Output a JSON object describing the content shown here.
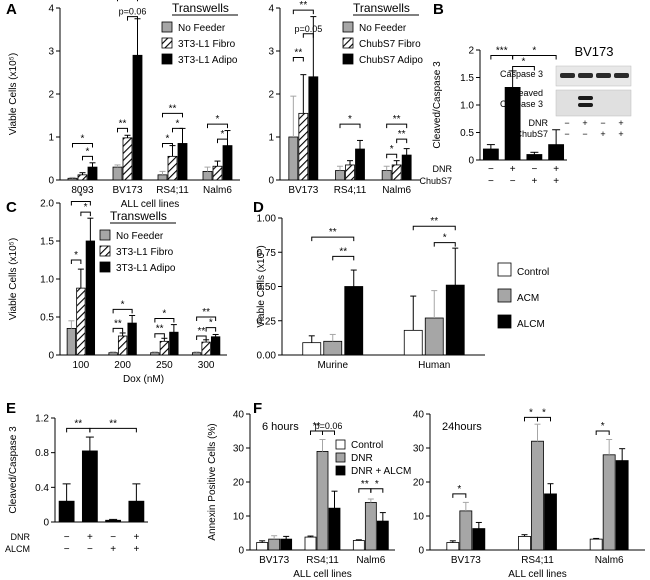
{
  "figure": {
    "colors": {
      "gray": "#a6a6a6",
      "black": "#000000",
      "white": "#ffffff",
      "hatch": "#000000"
    }
  },
  "chart_data": [
    {
      "id": "A1",
      "panel_letter": "A",
      "type": "bar",
      "title": "",
      "ylabel": "Viable Cells (x10⁵)",
      "xlabel": "ALL cell lines",
      "ylim": [
        0,
        4
      ],
      "yticks": [
        "0",
        "1",
        "2",
        "3",
        "4"
      ],
      "legend_title": "Transwells",
      "categories": [
        "8093",
        "BV173",
        "RS4;11",
        "Nalm6"
      ],
      "series": [
        {
          "name": "No Feeder",
          "style": "gray",
          "values": [
            0.04,
            0.3,
            0.12,
            0.2
          ],
          "errors": [
            0.02,
            0.05,
            0.08,
            0.1
          ]
        },
        {
          "name": "3T3-L1 Fibro",
          "style": "hatch",
          "values": [
            0.12,
            0.98,
            0.55,
            0.32
          ],
          "errors": [
            0.05,
            0.06,
            0.25,
            0.12
          ]
        },
        {
          "name": "3T3-L1 Adipo",
          "style": "black",
          "values": [
            0.3,
            2.9,
            0.85,
            0.8
          ],
          "errors": [
            0.1,
            0.85,
            0.35,
            0.35
          ]
        }
      ],
      "annotations": [
        {
          "cat": 0,
          "from": 0,
          "to": 2,
          "label": "*",
          "level": 0.85
        },
        {
          "cat": 0,
          "from": 1,
          "to": 2,
          "label": "*",
          "level": 0.55
        },
        {
          "cat": 1,
          "from": 0,
          "to": 1,
          "label": "**",
          "level": 1.2
        },
        {
          "cat": 1,
          "from": 1,
          "to": 2,
          "label": "p=0.06",
          "level": 3.8
        },
        {
          "cat": 1,
          "from": 0,
          "to": 2,
          "label": "**",
          "level": 4.25
        },
        {
          "cat": 2,
          "from": 0,
          "to": 2,
          "label": "**",
          "level": 1.55
        },
        {
          "cat": 2,
          "from": 0,
          "to": 1,
          "label": "*",
          "level": 0.85
        },
        {
          "cat": 2,
          "from": 1,
          "to": 2,
          "label": "*",
          "level": 1.2
        },
        {
          "cat": 3,
          "from": 0,
          "to": 2,
          "label": "*",
          "level": 1.3
        },
        {
          "cat": 3,
          "from": 1,
          "to": 2,
          "label": "*",
          "level": 0.95
        }
      ]
    },
    {
      "id": "A2",
      "panel_letter": "",
      "type": "bar",
      "title": "",
      "ylabel": "",
      "xlabel": "",
      "ylim": [
        0,
        4
      ],
      "yticks": [
        "0",
        "1",
        "2",
        "3",
        "4"
      ],
      "legend_title": "Transwells",
      "categories": [
        "BV173",
        "RS4;11",
        "Nalm6"
      ],
      "series": [
        {
          "name": "No Feeder",
          "style": "gray",
          "values": [
            1.0,
            0.22,
            0.22
          ],
          "errors": [
            0.95,
            0.1,
            0.1
          ]
        },
        {
          "name": "ChubS7 Fibro",
          "style": "hatch",
          "values": [
            1.55,
            0.35,
            0.35
          ],
          "errors": [
            0.9,
            0.1,
            0.1
          ]
        },
        {
          "name": "ChubS7 Adipo",
          "style": "black",
          "values": [
            2.4,
            0.72,
            0.58
          ],
          "errors": [
            1.4,
            0.2,
            0.15
          ]
        }
      ],
      "annotations": [
        {
          "cat": 0,
          "from": 0,
          "to": 1,
          "label": "**",
          "level": 2.85
        },
        {
          "cat": 0,
          "from": 1,
          "to": 2,
          "label": "p=0.05",
          "level": 3.4
        },
        {
          "cat": 0,
          "from": 0,
          "to": 2,
          "label": "**",
          "level": 3.95
        },
        {
          "cat": 1,
          "from": 0,
          "to": 2,
          "label": "*",
          "level": 1.3
        },
        {
          "cat": 2,
          "from": 0,
          "to": 2,
          "label": "**",
          "level": 1.3
        },
        {
          "cat": 2,
          "from": 1,
          "to": 2,
          "label": "**",
          "level": 0.95
        },
        {
          "cat": 2,
          "from": 0,
          "to": 1,
          "label": "*",
          "level": 0.6
        }
      ]
    },
    {
      "id": "B",
      "panel_letter": "B",
      "type": "bar",
      "title": "",
      "ylabel": "Cleaved/Caspase 3",
      "xlabel": "",
      "ylim": [
        0,
        2
      ],
      "yticks": [
        "0",
        "0.5",
        "1.0",
        "1.5",
        "2"
      ],
      "condition_rows": [
        {
          "label": "DNR",
          "values": [
            "−",
            "+",
            "−",
            "+"
          ]
        },
        {
          "label": "ChubS7",
          "values": [
            "−",
            "−",
            "+",
            "+"
          ]
        }
      ],
      "bars": [
        {
          "value": 0.2,
          "error": 0.08
        },
        {
          "value": 1.32,
          "error": 0.3
        },
        {
          "value": 0.1,
          "error": 0.04
        },
        {
          "value": 0.28,
          "error": 0.27
        }
      ],
      "annotations": [
        {
          "from": 0,
          "to": 1,
          "label": "***",
          "level": 1.9
        },
        {
          "from": 1,
          "to": 2,
          "label": "*",
          "level": 1.7
        },
        {
          "from": 1,
          "to": 3,
          "label": "*",
          "level": 1.9
        }
      ]
    },
    {
      "id": "C",
      "panel_letter": "C",
      "type": "bar",
      "title": "",
      "ylabel": "Viable Cells (x10⁵)",
      "xlabel": "Dox (nM)",
      "ylim": [
        0,
        2
      ],
      "yticks": [
        "0",
        "0.5",
        "1.0",
        "1.5",
        "2.0"
      ],
      "legend_title": "Transwells",
      "categories": [
        "100",
        "200",
        "250",
        "300"
      ],
      "series": [
        {
          "name": "No Feeder",
          "style": "gray",
          "values": [
            0.35,
            0.03,
            0.03,
            0.03
          ],
          "errors": [
            0.1,
            0.01,
            0.01,
            0.01
          ]
        },
        {
          "name": "3T3-L1 Fibro",
          "style": "hatch",
          "values": [
            0.88,
            0.25,
            0.18,
            0.17
          ],
          "errors": [
            0.25,
            0.04,
            0.04,
            0.03
          ]
        },
        {
          "name": "3T3-L1 Adipo",
          "style": "black",
          "values": [
            1.5,
            0.42,
            0.3,
            0.24
          ],
          "errors": [
            0.3,
            0.1,
            0.1,
            0.03
          ]
        }
      ],
      "annotations": [
        {
          "cat": 0,
          "from": 0,
          "to": 1,
          "label": "*",
          "level": 1.25
        },
        {
          "cat": 0,
          "from": 1,
          "to": 2,
          "label": "*",
          "level": 1.88
        },
        {
          "cat": 0,
          "from": 0,
          "to": 2,
          "label": "*",
          "level": 2.02
        },
        {
          "cat": 1,
          "from": 0,
          "to": 1,
          "label": "**",
          "level": 0.35
        },
        {
          "cat": 1,
          "from": 0,
          "to": 2,
          "label": "*",
          "level": 0.6
        },
        {
          "cat": 2,
          "from": 0,
          "to": 1,
          "label": "**",
          "level": 0.28
        },
        {
          "cat": 2,
          "from": 0,
          "to": 2,
          "label": "*",
          "level": 0.48
        },
        {
          "cat": 3,
          "from": 0,
          "to": 1,
          "label": "**",
          "level": 0.25
        },
        {
          "cat": 3,
          "from": 1,
          "to": 2,
          "label": "*",
          "level": 0.36
        },
        {
          "cat": 3,
          "from": 0,
          "to": 2,
          "label": "**",
          "level": 0.5
        }
      ]
    },
    {
      "id": "D",
      "panel_letter": "D",
      "type": "bar",
      "title": "",
      "ylabel": "Viable Cells  (x10⁵)",
      "xlabel": "",
      "ylim": [
        0,
        1.0
      ],
      "yticks": [
        "0.00",
        "0.25",
        "0.50",
        "0.75",
        "1.00"
      ],
      "legend_title": "",
      "categories": [
        "Murine",
        "Human"
      ],
      "series": [
        {
          "name": "Control",
          "style": "white",
          "values": [
            0.09,
            0.18
          ],
          "errors": [
            0.05,
            0.25
          ]
        },
        {
          "name": "ACM",
          "style": "gray",
          "values": [
            0.1,
            0.27
          ],
          "errors": [
            0.05,
            0.2
          ]
        },
        {
          "name": "ALCM",
          "style": "black",
          "values": [
            0.5,
            0.51
          ],
          "errors": [
            0.12,
            0.27
          ]
        }
      ],
      "annotations": [
        {
          "cat": 0,
          "from": 0,
          "to": 2,
          "label": "**",
          "level": 0.86
        },
        {
          "cat": 0,
          "from": 1,
          "to": 2,
          "label": "**",
          "level": 0.72
        },
        {
          "cat": 1,
          "from": 0,
          "to": 2,
          "label": "**",
          "level": 0.94
        },
        {
          "cat": 1,
          "from": 1,
          "to": 2,
          "label": "*",
          "level": 0.82
        }
      ]
    },
    {
      "id": "E",
      "panel_letter": "E",
      "type": "bar",
      "title": "",
      "ylabel": "Cleaved/Caspase 3",
      "xlabel": "",
      "ylim": [
        0,
        1.2
      ],
      "yticks": [
        "0",
        "0.4",
        "0.8",
        "1.2"
      ],
      "condition_rows": [
        {
          "label": "DNR",
          "values": [
            "−",
            "+",
            "−",
            "+"
          ]
        },
        {
          "label": "ALCM",
          "values": [
            "−",
            "−",
            "+",
            "+"
          ]
        }
      ],
      "bars": [
        {
          "value": 0.24,
          "error": 0.2
        },
        {
          "value": 0.82,
          "error": 0.16
        },
        {
          "value": 0.02,
          "error": 0.01
        },
        {
          "value": 0.24,
          "error": 0.2
        }
      ],
      "annotations": [
        {
          "from": 0,
          "to": 1,
          "label": "**",
          "level": 1.08
        },
        {
          "from": 1,
          "to": 3,
          "label": "**",
          "level": 1.08
        }
      ]
    },
    {
      "id": "F1",
      "panel_letter": "F",
      "type": "bar",
      "title": "6 hours",
      "ylabel": "Annexin Positive Cells (%)",
      "xlabel": "ALL cell lines",
      "ylim": [
        0,
        40
      ],
      "yticks": [
        "0",
        "10",
        "20",
        "30",
        "40"
      ],
      "legend_title": "",
      "categories": [
        "BV173",
        "RS4;11",
        "Nalm6"
      ],
      "series": [
        {
          "name": "Control",
          "style": "white",
          "values": [
            2.2,
            3.8,
            2.8
          ],
          "errors": [
            0.5,
            0.3,
            0.2
          ]
        },
        {
          "name": "DNR",
          "style": "gray",
          "values": [
            3.2,
            29.0,
            14.0
          ],
          "errors": [
            1.0,
            3.5,
            1.0
          ]
        },
        {
          "name": "DNR + ALCM",
          "style": "black",
          "values": [
            3.2,
            12.3,
            8.5
          ],
          "errors": [
            0.8,
            5.0,
            2.5
          ]
        }
      ],
      "annotations": [
        {
          "cat": 1,
          "from": 0,
          "to": 1,
          "label": "**",
          "level": 35
        },
        {
          "cat": 1,
          "from": 1,
          "to": 2,
          "label": "p=0.06",
          "level": 35
        },
        {
          "cat": 2,
          "from": 0,
          "to": 1,
          "label": "**",
          "level": 18
        },
        {
          "cat": 2,
          "from": 1,
          "to": 2,
          "label": "*",
          "level": 18
        }
      ]
    },
    {
      "id": "F2",
      "panel_letter": "",
      "type": "bar",
      "title": "24hours",
      "ylabel": "",
      "xlabel": "ALL cell lines",
      "ylim": [
        0,
        40
      ],
      "yticks": [
        "0",
        "10",
        "20",
        "30",
        "40"
      ],
      "legend_title": "",
      "categories": [
        "BV173",
        "RS4;11",
        "Nalm6"
      ],
      "series": [
        {
          "name": "Control",
          "style": "white",
          "values": [
            2.2,
            4.0,
            3.2
          ],
          "errors": [
            0.5,
            0.5,
            0.2
          ]
        },
        {
          "name": "DNR",
          "style": "gray",
          "values": [
            11.5,
            32.0,
            28.0
          ],
          "errors": [
            2.5,
            5.0,
            4.5
          ]
        },
        {
          "name": "DNR + ALCM",
          "style": "black",
          "values": [
            6.3,
            16.5,
            26.3
          ],
          "errors": [
            1.8,
            3.0,
            3.5
          ]
        }
      ],
      "annotations": [
        {
          "cat": 0,
          "from": 0,
          "to": 1,
          "label": "*",
          "level": 16.5
        },
        {
          "cat": 1,
          "from": 0,
          "to": 1,
          "label": "*",
          "level": 39
        },
        {
          "cat": 1,
          "from": 1,
          "to": 2,
          "label": "*",
          "level": 39
        },
        {
          "cat": 2,
          "from": 0,
          "to": 1,
          "label": "*",
          "level": 35
        }
      ]
    }
  ],
  "western_blot": {
    "title": "BV173",
    "band_labels": [
      "Caspase 3",
      "Cleaved",
      "Caspase 3"
    ],
    "condition_rows": [
      {
        "label": "DNR",
        "values": [
          "−",
          "+",
          "−",
          "+"
        ]
      },
      {
        "label": "ChubS7",
        "values": [
          "−",
          "−",
          "+",
          "+"
        ]
      }
    ]
  }
}
